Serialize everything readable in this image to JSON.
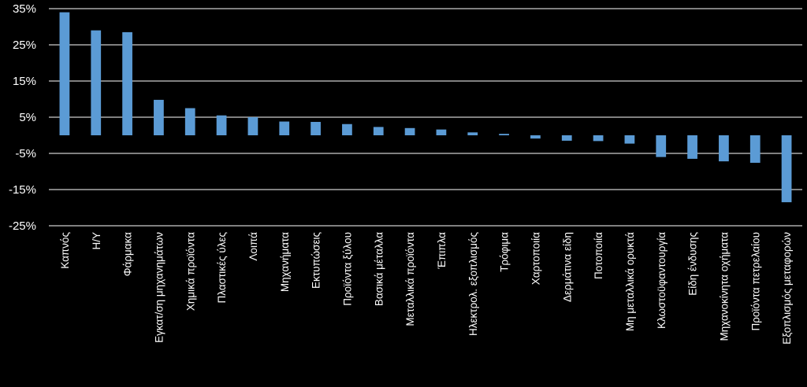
{
  "chart_data": {
    "type": "bar",
    "title": "",
    "xlabel": "",
    "ylabel": "",
    "ylim": [
      -25,
      35
    ],
    "yticks": [
      35,
      25,
      15,
      5,
      -5,
      -15,
      -25
    ],
    "ytick_labels": [
      "35%",
      "25%",
      "15%",
      "5%",
      "-5%",
      "-15%",
      "-25%"
    ],
    "grid": true,
    "legend": "none",
    "colors": {
      "bar": "#5b9bd5",
      "background": "#000000",
      "grid": "#ffffff",
      "text": "#ffffff"
    },
    "categories": [
      "Καπνός",
      "Η/Υ",
      "Φάρμακα",
      "Εγκατ/ση μηχανημάτων",
      "Χημικά προϊόντα",
      "Πλαστικές ύλες",
      "Λοιπά",
      "Μηχανήματα",
      "Εκτυπώσεις",
      "Προϊόντα ξύλου",
      "Βασικά μέταλλα",
      "Μεταλλικά προϊόντα",
      "Έπιπλα",
      "Ηλεκτρολ. εξοπλισμός",
      "Τρόφιμα",
      "Χαρτοποιία",
      "Δερμάτινα είδη",
      "Ποτοποιία",
      "Μη μεταλλικά ορυκτά",
      "Κλωστοϋφαντουργία",
      "Είδη ένδυσης",
      "Μηχανοκίνητα οχήματα",
      "Προϊόντα πετρελαίου",
      "Εξοπλισμός μεταφορών"
    ],
    "values": [
      34,
      29,
      28.5,
      9.8,
      7.5,
      5.5,
      5.0,
      3.8,
      3.7,
      3.1,
      2.3,
      2.0,
      1.6,
      0.8,
      0.4,
      -0.9,
      -1.5,
      -1.6,
      -2.3,
      -6.0,
      -6.5,
      -7.2,
      -7.6,
      -18.5
    ]
  }
}
